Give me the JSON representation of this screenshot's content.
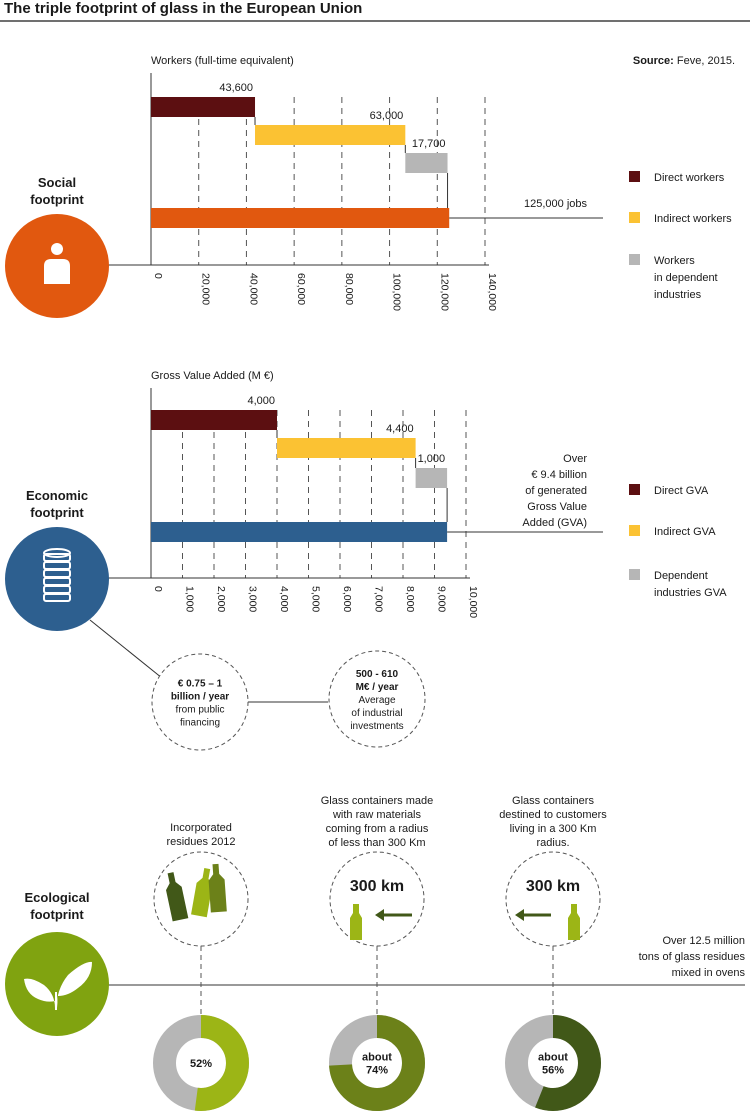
{
  "title": "The triple footprint of glass in the European Union",
  "source": {
    "label": "Source:",
    "text": " Feve, 2015."
  },
  "colors": {
    "direct": "#5c0f11",
    "indirect": "#fbc233",
    "dependent": "#b6b6b6",
    "social_total": "#e1580f",
    "economic_total": "#2d5f8f",
    "eco_icon": "#80a310",
    "eco_light": "#9cb516",
    "eco_mid": "#6c8119",
    "eco_dark": "#415818",
    "donut_grey": "#b6b6b6",
    "white": "#ffffff"
  },
  "social": {
    "heading": [
      "Social",
      "footprint"
    ],
    "icon": "person-icon",
    "legend": [
      {
        "key": "direct",
        "lines": [
          "Direct workers"
        ]
      },
      {
        "key": "indirect",
        "lines": [
          "Indirect workers"
        ]
      },
      {
        "key": "dependent",
        "lines": [
          "Workers",
          "in dependent",
          "industries"
        ]
      }
    ]
  },
  "economic": {
    "heading": [
      "Economic",
      "footprint"
    ],
    "icon": "coins-icon",
    "legend": [
      {
        "key": "direct",
        "lines": [
          "Direct GVA"
        ]
      },
      {
        "key": "indirect",
        "lines": [
          "Indirect GVA"
        ]
      },
      {
        "key": "dependent",
        "lines": [
          "Dependent",
          "industries GVA"
        ]
      }
    ],
    "bubbles": [
      {
        "bold": [
          "€ 0.75 – 1",
          "billion / year"
        ],
        "normal": [
          "from public",
          "financing"
        ]
      },
      {
        "bold": [
          "500 - 610",
          "M€ / year"
        ],
        "normal": [
          "Average",
          "of industrial",
          "investments"
        ]
      }
    ]
  },
  "ecological": {
    "heading": [
      "Ecological",
      "footprint"
    ],
    "icon": "leaf-icon",
    "total_lines": [
      "Over 12.5 million",
      "tons of glass residues",
      "mixed in ovens"
    ],
    "items": [
      {
        "caption": [
          "Incorporated",
          "residues 2012"
        ],
        "icon": "bottles-icon",
        "donut_label": [
          "52%"
        ],
        "value": 52,
        "color": "#9cb516"
      },
      {
        "caption": [
          "Glass containers made",
          "with raw materials",
          "coming from a radius",
          "of less than 300 Km"
        ],
        "icon": "bottle-arrow-in-icon",
        "distance": "300 km",
        "donut_label": [
          "about",
          "74%"
        ],
        "value": 74,
        "color": "#6c8119"
      },
      {
        "caption": [
          "Glass containers",
          "destined to customers",
          "living in a 300 Km",
          "radius."
        ],
        "icon": "bottle-arrow-out-icon",
        "distance": "300 km",
        "donut_label": [
          "about",
          "56%"
        ],
        "value": 56,
        "color": "#415818"
      }
    ]
  },
  "chart_data": [
    {
      "type": "bar",
      "title": "Workers (full-time equivalent)",
      "orientation": "horizontal",
      "layout": "waterfall",
      "categories": [
        "Direct workers",
        "Indirect workers",
        "Workers in dependent industries"
      ],
      "values": [
        43600,
        63000,
        17700
      ],
      "value_labels": [
        "43,600",
        "63,000",
        "17,700"
      ],
      "total": {
        "value": 125000,
        "label": "125,000 jobs"
      },
      "xlim": [
        0,
        140000
      ],
      "ticks": [
        0,
        20000,
        40000,
        60000,
        80000,
        100000,
        120000,
        140000
      ],
      "tick_labels": [
        "0",
        "20,000",
        "40,000",
        "60,000",
        "80,000",
        "100,000",
        "120,000",
        "140,000"
      ],
      "grid": "dashed vertical",
      "legend_position": "right"
    },
    {
      "type": "bar",
      "title": "Gross Value Added (M €)",
      "orientation": "horizontal",
      "layout": "waterfall",
      "categories": [
        "Direct GVA",
        "Indirect GVA",
        "Dependent industries GVA"
      ],
      "values": [
        4000,
        4400,
        1000
      ],
      "value_labels": [
        "4,000",
        "4,400",
        "1,000"
      ],
      "total": {
        "value": 9400,
        "label_lines": [
          "Over",
          "€ 9.4 billion",
          "of generated",
          "Gross Value",
          "Added (GVA)"
        ]
      },
      "xlim": [
        0,
        10000
      ],
      "ticks": [
        0,
        1000,
        2000,
        3000,
        4000,
        5000,
        6000,
        7000,
        8000,
        9000,
        10000
      ],
      "tick_labels": [
        "0",
        "1,000",
        "2,000",
        "3,000",
        "4,000",
        "5,000",
        "6,000",
        "7,000",
        "8,000",
        "9,000",
        "10,000"
      ],
      "grid": "dashed vertical",
      "legend_position": "right"
    },
    {
      "type": "pie",
      "style": "donut",
      "series": [
        {
          "label": "52%",
          "value": 52
        },
        {
          "label": "about 74%",
          "value": 74
        },
        {
          "label": "about 56%",
          "value": 56
        }
      ]
    }
  ]
}
